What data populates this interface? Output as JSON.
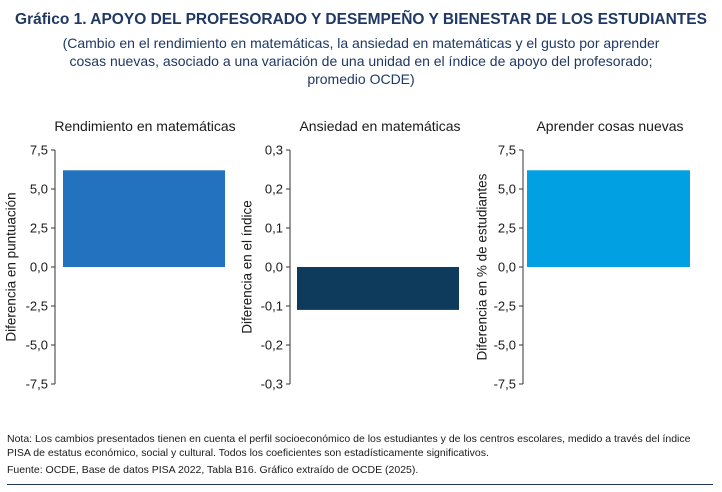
{
  "title": "Gráfico 1. APOYO DEL PROFESORADO Y DESEMPEÑO Y BIENESTAR DE LOS ESTUDIANTES",
  "subtitle_lines": [
    "(Cambio en el rendimiento en matemáticas, la ansiedad en matemáticas y el gusto por aprender",
    "cosas nuevas, asociado a una variación de una unidad en el índice de apoyo del profesorado;",
    "promedio OCDE)"
  ],
  "chart_data": [
    {
      "type": "bar",
      "title": "Rendimiento en matemáticas",
      "ylabel": "Diferencia en puntuación",
      "ylim": [
        -7.5,
        7.5
      ],
      "yticks": [
        "7,5",
        "5,0",
        "2,5",
        "0,0",
        "-2,5",
        "-5,0",
        "-7,5"
      ],
      "values": [
        6.2
      ],
      "color": "#2272bf"
    },
    {
      "type": "bar",
      "title": "Ansiedad en matemáticas",
      "ylabel": "Diferencia en el índice",
      "ylim": [
        -0.3,
        0.3
      ],
      "yticks": [
        "0,3",
        "0,2",
        "0,1",
        "0,0",
        "-0,1",
        "-0,2",
        "-0,3"
      ],
      "values": [
        -0.11
      ],
      "color": "#0e3a5c"
    },
    {
      "type": "bar",
      "title": "Aprender cosas nuevas",
      "ylabel": "Diferencia en % de estudiantes",
      "ylim": [
        -7.5,
        7.5
      ],
      "yticks": [
        "7,5",
        "5,0",
        "2,5",
        "0,0",
        "-2,5",
        "-5,0",
        "-7,5"
      ],
      "values": [
        6.2
      ],
      "color": "#00a0e3"
    }
  ],
  "note": "Nota: Los cambios presentados tienen en cuenta el perfil socioeconómico de los estudiantes y de los centros escolares, medido a través del índice PISA de estatus económico, social y cultural. Todos los coeficientes son estadísticamente significativos.",
  "source": "Fuente: OCDE, Base de datos PISA 2022, Tabla B16. Gráfico extraído de OCDE (2025)."
}
